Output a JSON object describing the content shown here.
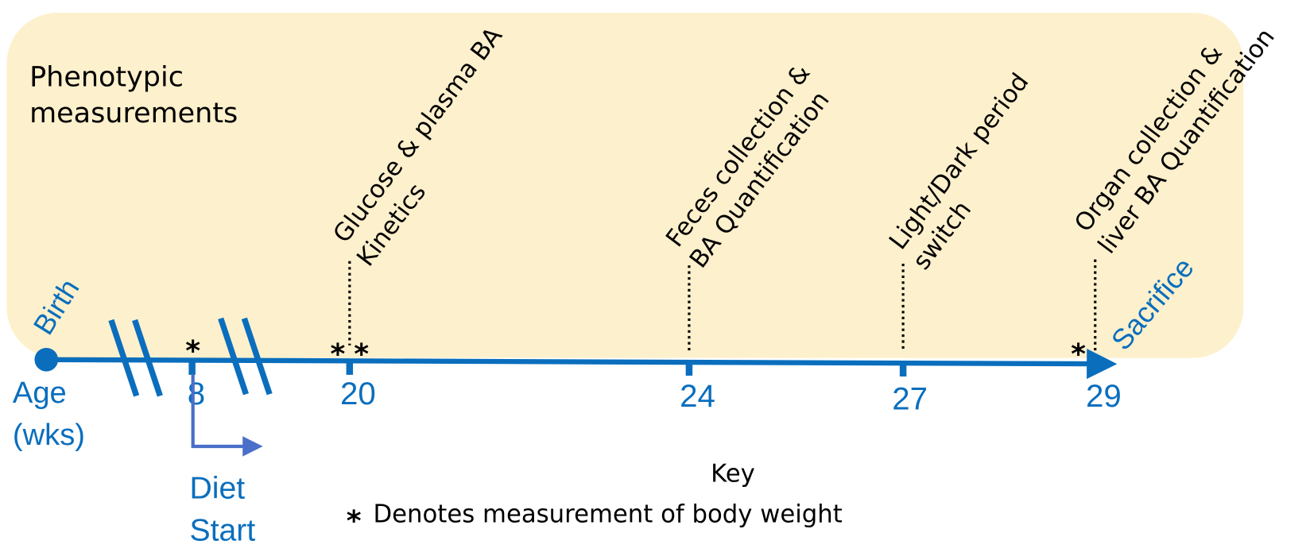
{
  "panel": {
    "title": [
      "Phenotypic",
      "measurements"
    ]
  },
  "timeline": {
    "start": "Birth",
    "end": "Sacrifice",
    "axis_label": [
      "Age",
      "(wks)"
    ],
    "ticks": [
      "8",
      "20",
      "24",
      "27",
      "29"
    ],
    "diet": [
      "Diet",
      "Start"
    ]
  },
  "events": [
    {
      "label": [
        "Glucose & plasma BA",
        "Kinetics"
      ]
    },
    {
      "label": [
        "Feces collection &",
        "BA Quantification"
      ]
    },
    {
      "label": [
        "Light/Dark period",
        "switch"
      ]
    },
    {
      "label": [
        "Organ collection &",
        "liver BA Quantification"
      ]
    }
  ],
  "key": {
    "title": "Key",
    "symbol": "*",
    "text": "Denotes measurement of body weight"
  }
}
